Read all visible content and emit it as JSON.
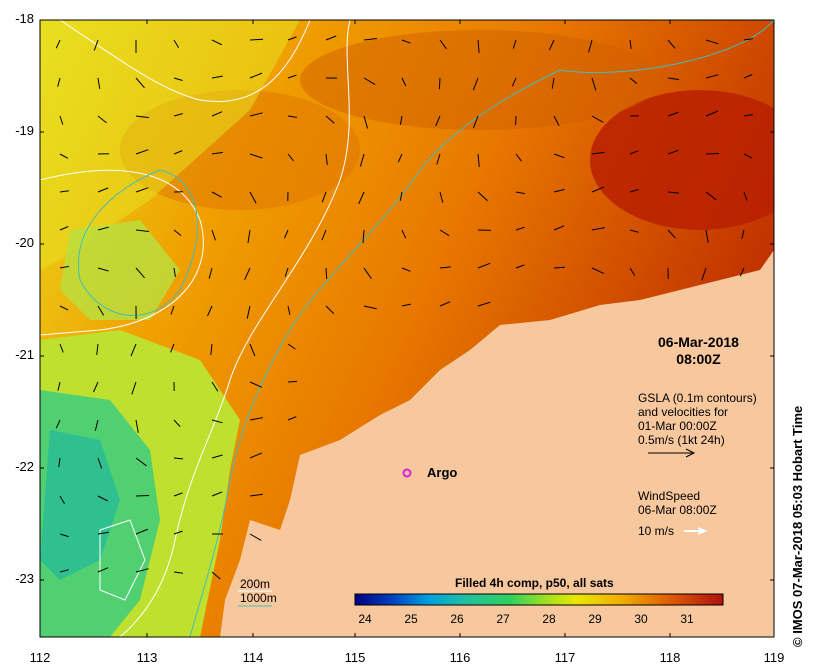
{
  "map": {
    "y_axis_labels": [
      "-18",
      "-19",
      "-20",
      "-21",
      "-22",
      "-23"
    ],
    "x_axis_labels": [
      "112",
      "113",
      "114",
      "115",
      "116",
      "117",
      "118",
      "119"
    ],
    "date": "06-Mar-2018",
    "time": "08:00Z",
    "marker_label": "Argo",
    "gsla_lines": [
      "GSLA (0.1m contours)",
      "and velocities for",
      "01-Mar 00:00Z",
      "0.5m/s (1kt 24h)"
    ],
    "wind_lines": [
      "WindSpeed",
      "06-Mar 08:00Z"
    ],
    "wind_scale_label": "10 m/s",
    "isobath_200": "200m",
    "isobath_1000": "1000m",
    "colorbar_title": "Filled 4h comp, p50, all sats",
    "colorbar_ticks": [
      "24",
      "25",
      "26",
      "27",
      "28",
      "29",
      "30",
      "31"
    ],
    "credit": "© IMOS 07-Mar-2018 05:03 Hobart Time"
  },
  "colors": {
    "land": "#f7c79e",
    "marker": "#e020e0",
    "isobath_200": "#ffffff",
    "isobath_1000": "#40c0b8"
  }
}
